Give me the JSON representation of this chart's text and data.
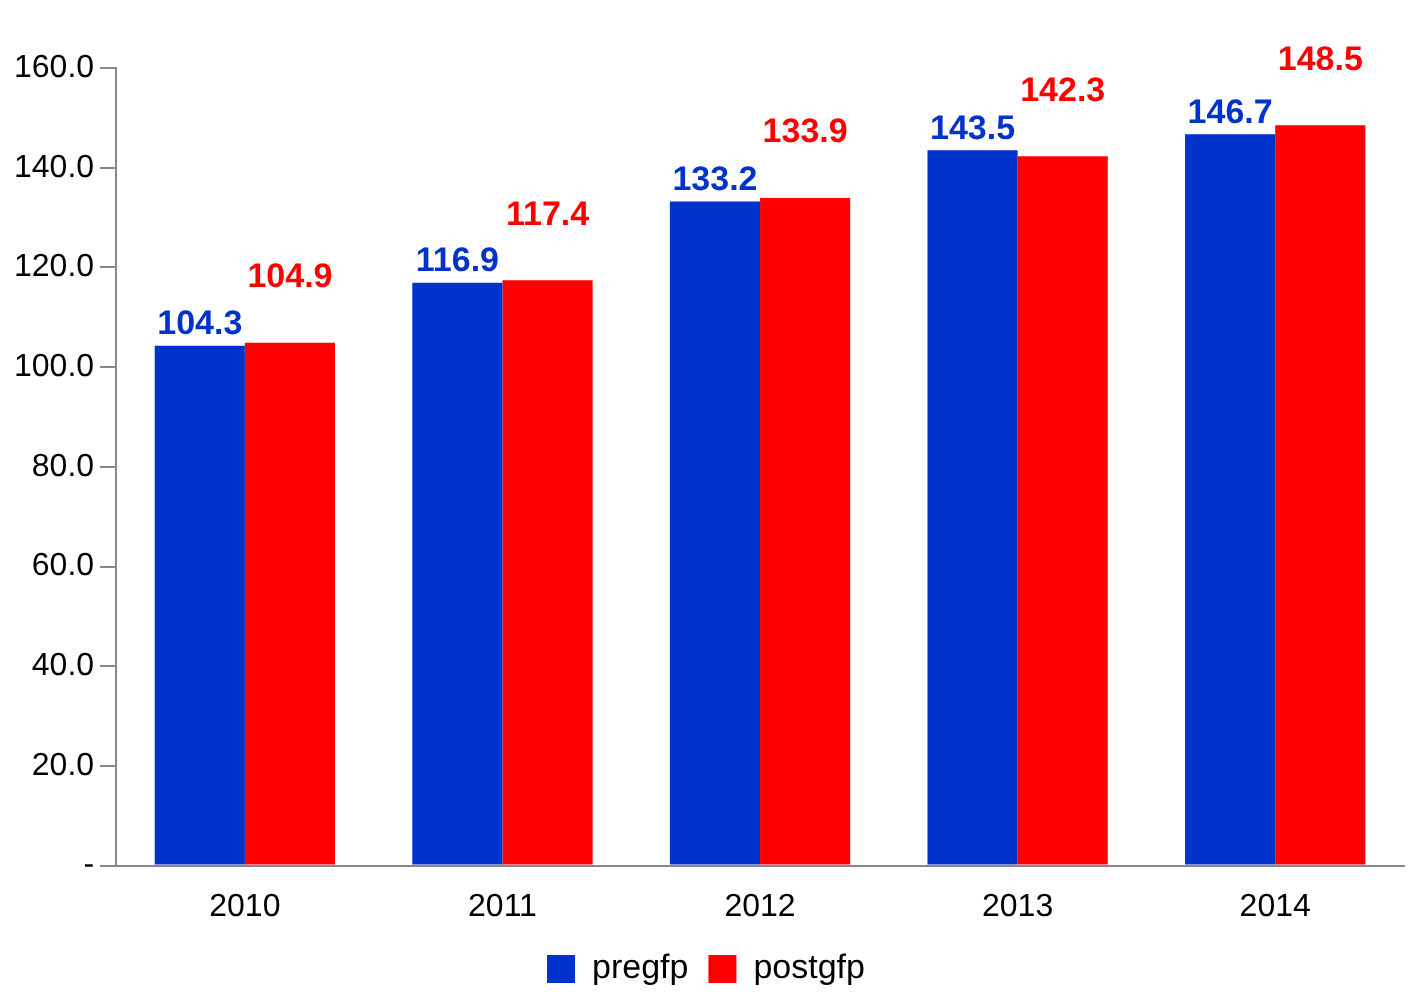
{
  "chart_data": {
    "type": "bar",
    "categories": [
      "2010",
      "2011",
      "2012",
      "2013",
      "2014"
    ],
    "series": [
      {
        "name": "pregfp",
        "color": "#0033cc",
        "values": [
          104.3,
          116.9,
          133.2,
          143.5,
          146.7
        ]
      },
      {
        "name": "postgfp",
        "color": "#ff0000",
        "values": [
          104.9,
          117.4,
          133.9,
          142.3,
          148.5
        ]
      }
    ],
    "ylim": [
      0,
      160
    ],
    "yticks": [
      {
        "value": 0,
        "label": "-"
      },
      {
        "value": 20,
        "label": "20.0"
      },
      {
        "value": 40,
        "label": "40.0"
      },
      {
        "value": 60,
        "label": "60.0"
      },
      {
        "value": 80,
        "label": "80.0"
      },
      {
        "value": 100,
        "label": "100.0"
      },
      {
        "value": 120,
        "label": "120.0"
      },
      {
        "value": 140,
        "label": "140.0"
      },
      {
        "value": 160,
        "label": "160.0"
      }
    ],
    "grid": false,
    "legend": "bottom",
    "data_labels": true
  }
}
